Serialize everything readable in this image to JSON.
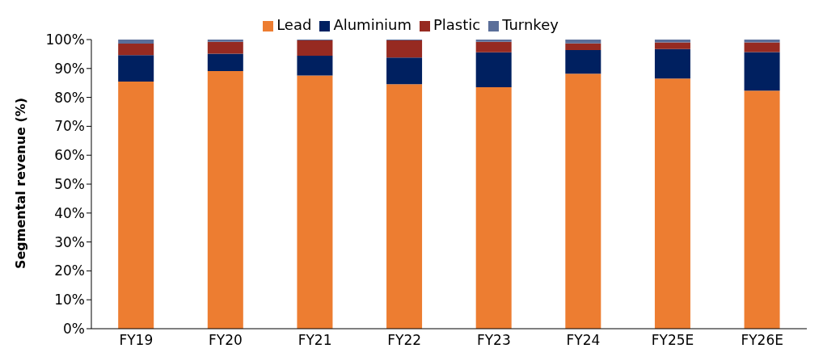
{
  "chart_data": {
    "type": "bar",
    "stacked": true,
    "ylabel": "Segmental revenue (%)",
    "categories": [
      "FY19",
      "FY20",
      "FY21",
      "FY22",
      "FY23",
      "FY24",
      "FY25E",
      "FY26E"
    ],
    "series": [
      {
        "name": "Lead",
        "color": "#ed7d31",
        "values": [
          85.5,
          89.1,
          87.6,
          84.6,
          83.5,
          88.2,
          86.5,
          82.3
        ]
      },
      {
        "name": "Aluminium",
        "color": "#002060",
        "values": [
          9.1,
          6.0,
          6.8,
          9.2,
          12.1,
          8.2,
          10.2,
          13.4
        ]
      },
      {
        "name": "Plastic",
        "color": "#962a21",
        "values": [
          4.0,
          4.1,
          5.3,
          5.9,
          3.6,
          2.3,
          2.3,
          3.3
        ]
      },
      {
        "name": "Turnkey",
        "color": "#5a6e99",
        "values": [
          1.4,
          0.8,
          0.3,
          0.3,
          0.8,
          1.3,
          1.0,
          1.0
        ]
      }
    ],
    "ylim": [
      0,
      100
    ],
    "yticks": [
      {
        "value": 0,
        "label": "0%"
      },
      {
        "value": 10,
        "label": "10%"
      },
      {
        "value": 20,
        "label": "20%"
      },
      {
        "value": 30,
        "label": "30%"
      },
      {
        "value": 40,
        "label": "40%"
      },
      {
        "value": 50,
        "label": "50%"
      },
      {
        "value": 60,
        "label": "60%"
      },
      {
        "value": 70,
        "label": "70%"
      },
      {
        "value": 80,
        "label": "80%"
      },
      {
        "value": 90,
        "label": "90%"
      },
      {
        "value": 100,
        "label": "100%"
      }
    ],
    "grid": false,
    "legend": "top"
  }
}
